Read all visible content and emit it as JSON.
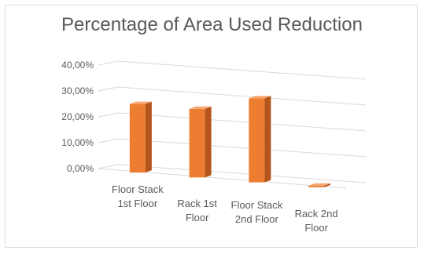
{
  "chart_data": {
    "type": "bar",
    "title": "Percentage of Area Used Reduction",
    "categories": [
      "Floor Stack 1st Floor",
      "Rack 1st Floor",
      "Floor Stack 2nd Floor",
      "Rack 2nd Floor"
    ],
    "category_lines": [
      [
        "Floor Stack",
        "1st Floor"
      ],
      [
        "Rack 1st",
        "Floor"
      ],
      [
        "Floor Stack",
        "2nd Floor"
      ],
      [
        "Rack 2nd",
        "Floor"
      ]
    ],
    "values": [
      0.265,
      0.265,
      0.325,
      0.0
    ],
    "y_ticks": [
      "0,00%",
      "10,00%",
      "20,00%",
      "30,00%",
      "40,00%"
    ],
    "ylim": [
      0,
      0.4
    ],
    "grid": true,
    "bar_color": "#ED7D31",
    "bar_side_color": "#B5551B",
    "bar_top_color": "#F4A46E"
  }
}
